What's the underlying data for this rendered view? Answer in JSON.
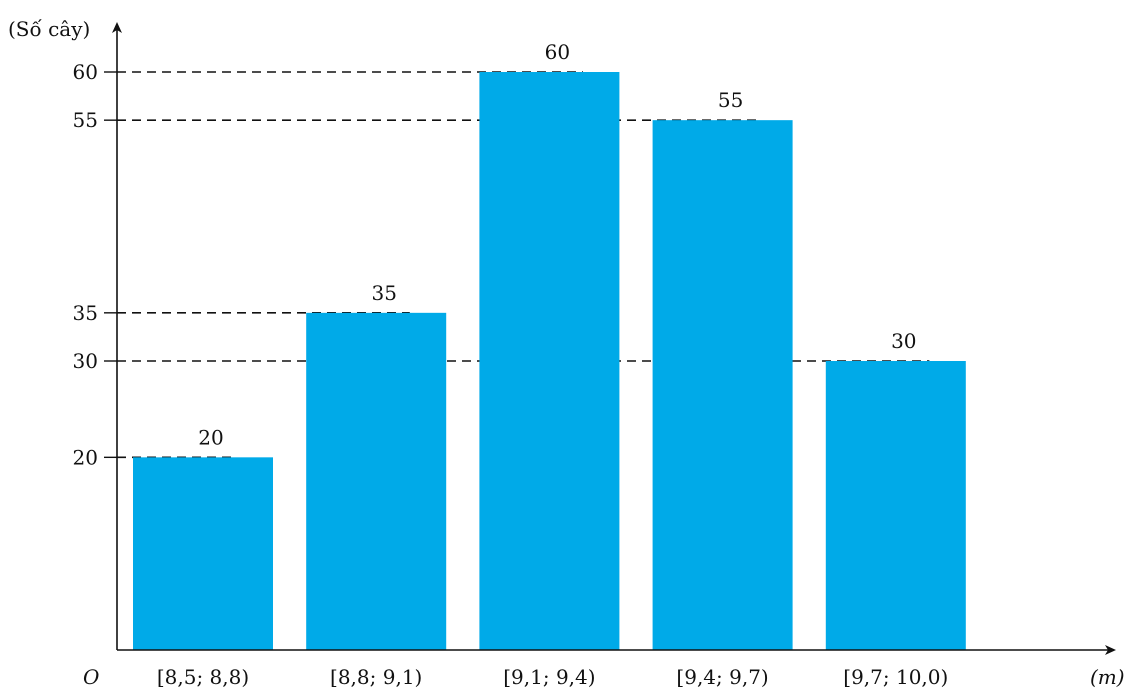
{
  "chart_data": {
    "type": "bar",
    "categories": [
      "[8,5; 8,8)",
      "[8,8; 9,1)",
      "[9,1; 9,4)",
      "[9,4; 9,7)",
      "[9,7; 10,0)"
    ],
    "values": [
      20,
      35,
      60,
      55,
      30
    ],
    "data_labels": [
      "20",
      "35",
      "60",
      "55",
      "30"
    ],
    "y_ticks": [
      20,
      30,
      35,
      55,
      60
    ],
    "y_tick_labels": [
      "20",
      "30",
      "35",
      "55",
      "60"
    ],
    "ylabel": "(Số cây)",
    "xlabel": "(m)",
    "origin_label": "O",
    "ylim": [
      0,
      60
    ],
    "grid": false,
    "reference_lines": "dashed",
    "bar_color": "#00AAE8",
    "axis_color": "#111111"
  }
}
